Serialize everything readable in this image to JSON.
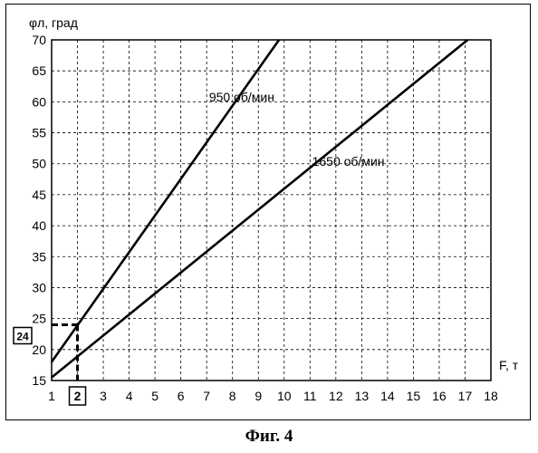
{
  "figure_caption": "Фиг. 4",
  "chart_data": {
    "type": "line",
    "ylabel": "φл, град",
    "xlabel": "F, т",
    "xlim": [
      1,
      18
    ],
    "ylim": [
      15,
      70
    ],
    "x_ticks": [
      1,
      2,
      3,
      4,
      5,
      6,
      7,
      8,
      9,
      10,
      11,
      12,
      13,
      14,
      15,
      16,
      17,
      18
    ],
    "y_ticks": [
      15,
      20,
      25,
      30,
      35,
      40,
      45,
      50,
      55,
      60,
      65,
      70
    ],
    "grid": true,
    "series": [
      {
        "name": "950 об/мин",
        "x": [
          1,
          9.8
        ],
        "y": [
          18,
          70
        ]
      },
      {
        "name": "1650 об/мин",
        "x": [
          1,
          17.1
        ],
        "y": [
          15.5,
          70
        ]
      }
    ],
    "annotation": {
      "x": 2,
      "y": 24,
      "x_label": "2",
      "y_label": "24"
    }
  }
}
